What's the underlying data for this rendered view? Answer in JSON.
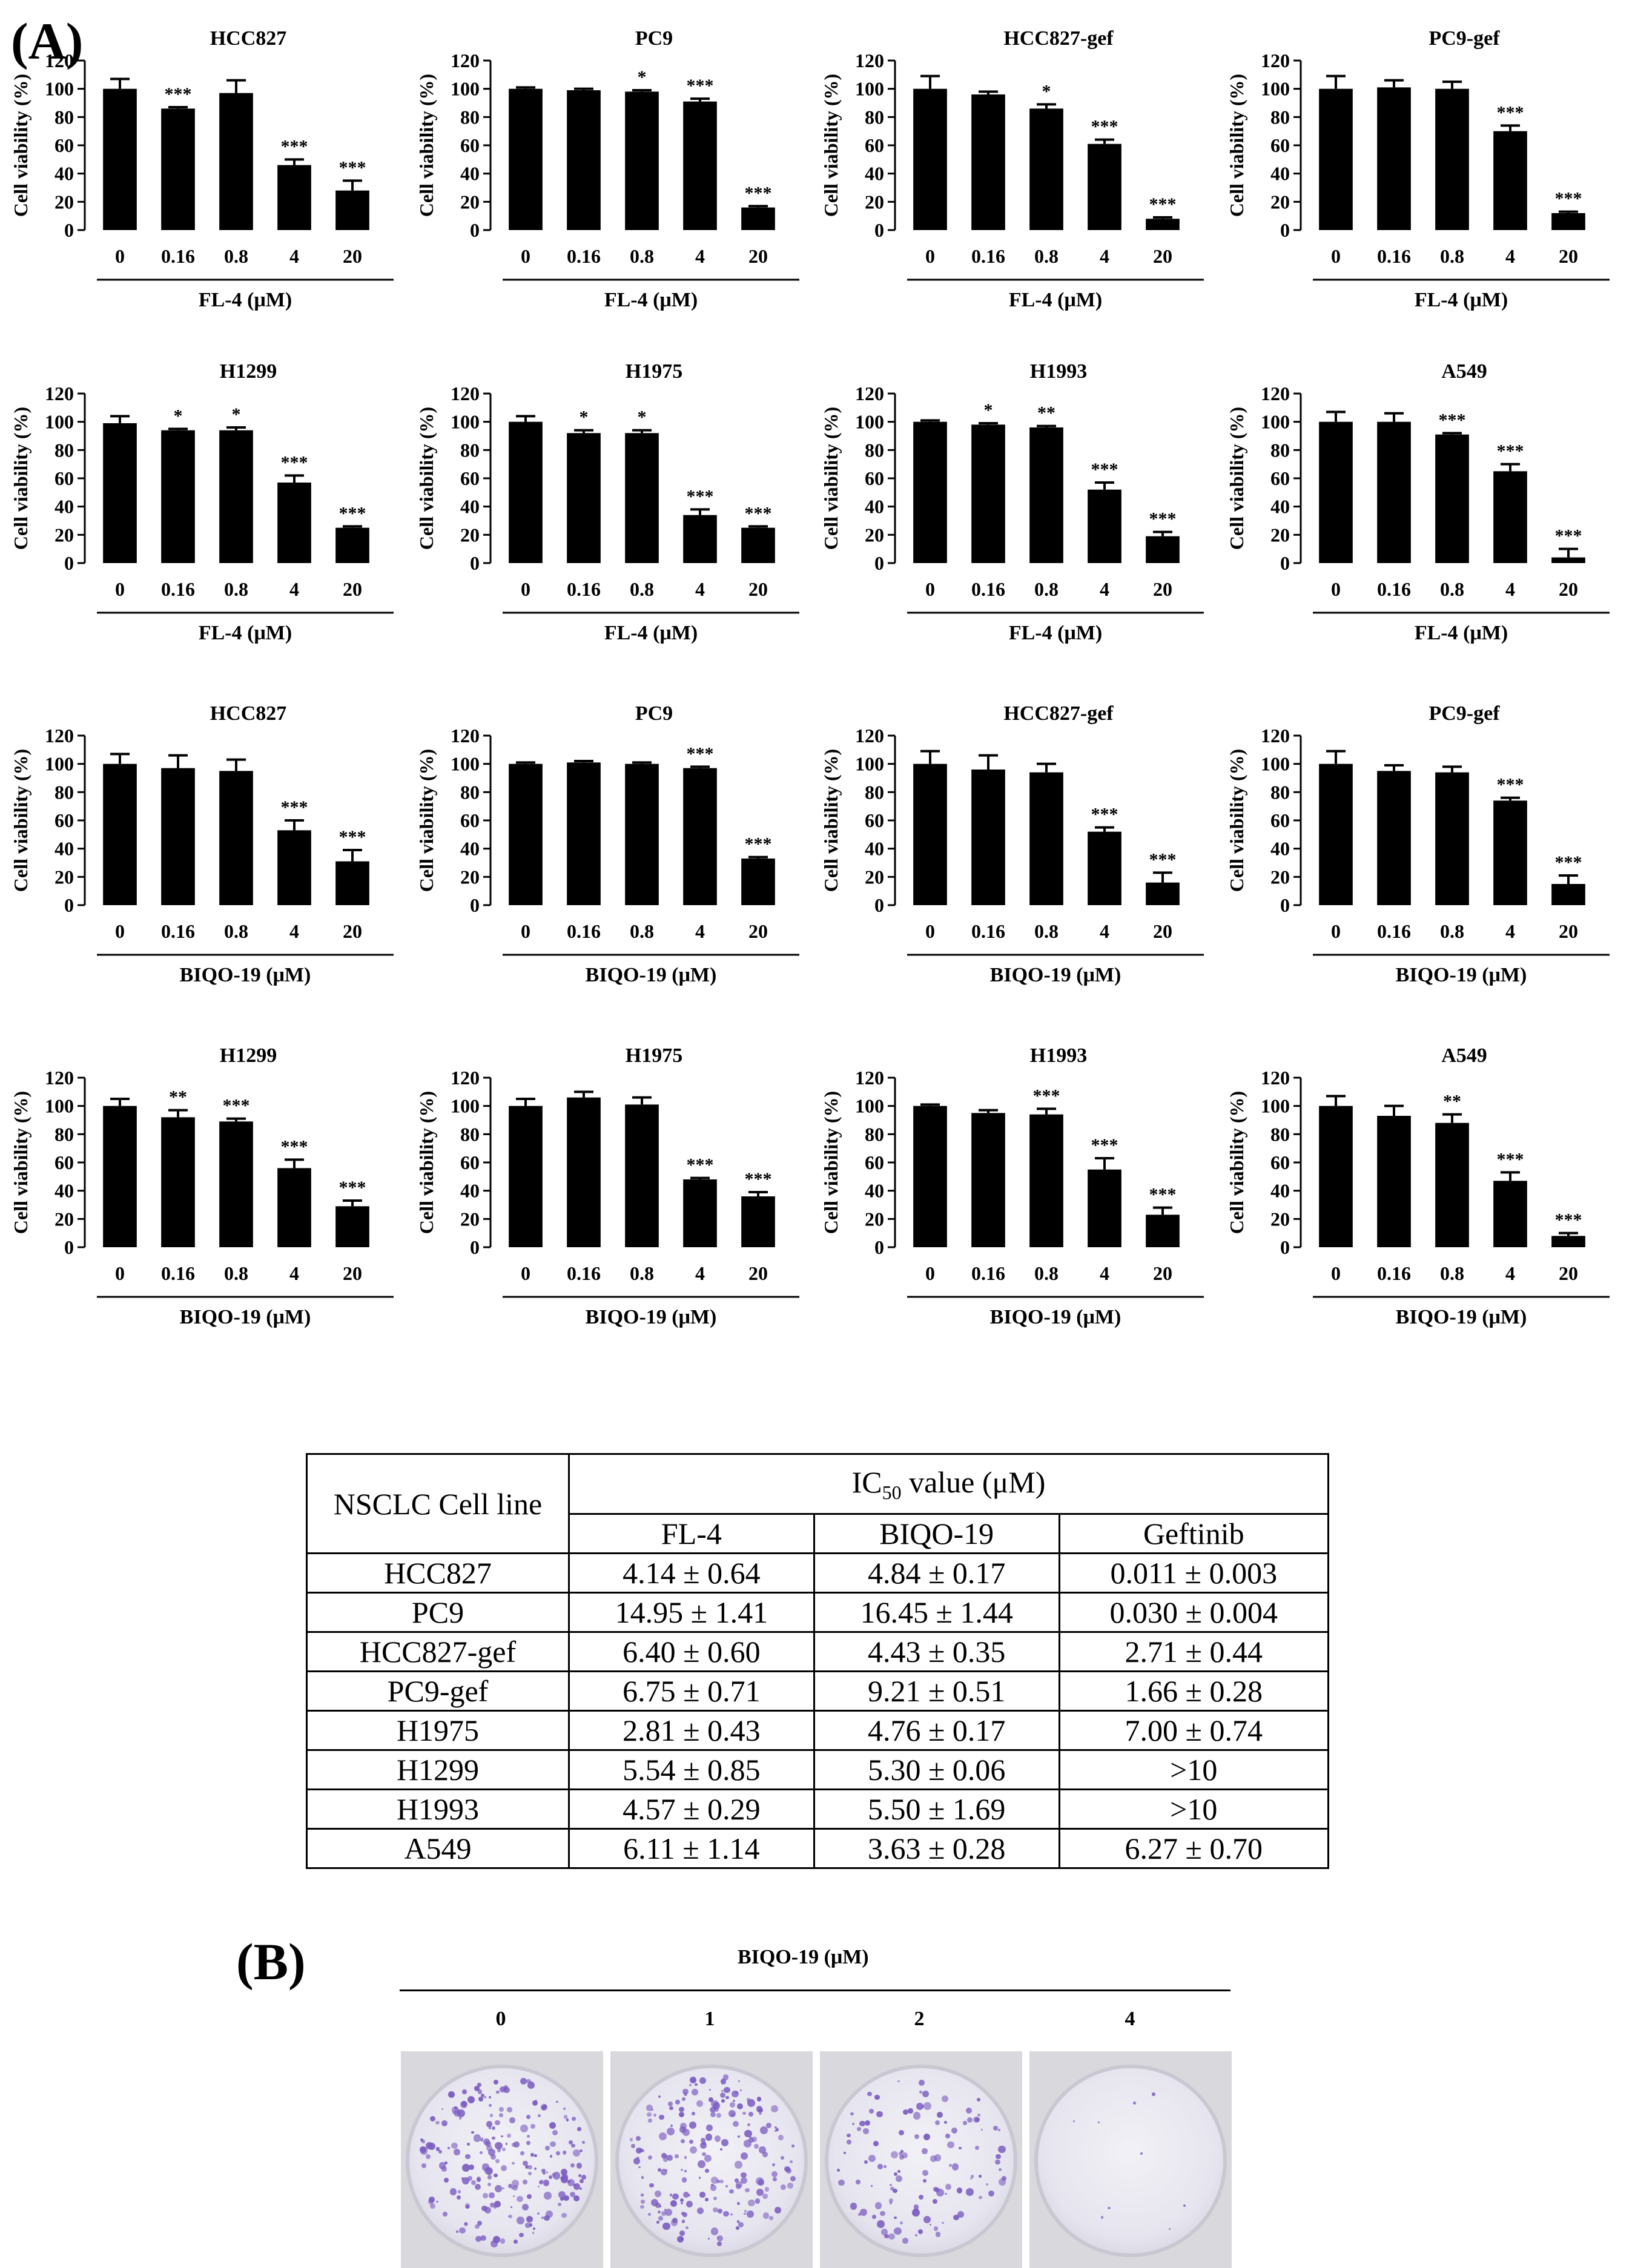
{
  "panel_labels": {
    "a": "(A)",
    "b": "(B)"
  },
  "y_axis_label": "Cell viability (%)",
  "x_tick_labels": [
    "0",
    "0.16",
    "0.8",
    "4",
    "20"
  ],
  "chart_data": [
    {
      "type": "bar",
      "title": "HCC827",
      "xlabel": "FL-4 (μM)",
      "ylabel": "Cell viability (%)",
      "ylim": [
        0,
        120
      ],
      "categories": [
        "0",
        "0.16",
        "0.8",
        "4",
        "20"
      ],
      "values": [
        100,
        86,
        97,
        46,
        28
      ],
      "errors": [
        7,
        1,
        9,
        4,
        7
      ],
      "significance": [
        "",
        "***",
        "",
        "***",
        "***"
      ]
    },
    {
      "type": "bar",
      "title": "PC9",
      "xlabel": "FL-4 (μM)",
      "ylabel": "Cell viability (%)",
      "ylim": [
        0,
        120
      ],
      "categories": [
        "0",
        "0.16",
        "0.8",
        "4",
        "20"
      ],
      "values": [
        100,
        99,
        98,
        91,
        16
      ],
      "errors": [
        1,
        1,
        1,
        2,
        1
      ],
      "significance": [
        "",
        "",
        "*",
        "***",
        "***"
      ]
    },
    {
      "type": "bar",
      "title": "HCC827-gef",
      "xlabel": "FL-4 (μM)",
      "ylabel": "Cell viability (%)",
      "ylim": [
        0,
        120
      ],
      "categories": [
        "0",
        "0.16",
        "0.8",
        "4",
        "20"
      ],
      "values": [
        100,
        96,
        86,
        61,
        8
      ],
      "errors": [
        9,
        2,
        3,
        3,
        1
      ],
      "significance": [
        "",
        "",
        "*",
        "***",
        "***"
      ]
    },
    {
      "type": "bar",
      "title": "PC9-gef",
      "xlabel": "FL-4 (μM)",
      "ylabel": "Cell viability (%)",
      "ylim": [
        0,
        120
      ],
      "categories": [
        "0",
        "0.16",
        "0.8",
        "4",
        "20"
      ],
      "values": [
        100,
        101,
        100,
        70,
        12
      ],
      "errors": [
        9,
        5,
        5,
        4,
        1
      ],
      "significance": [
        "",
        "",
        "",
        "***",
        "***"
      ]
    },
    {
      "type": "bar",
      "title": "H1299",
      "xlabel": "FL-4 (μM)",
      "ylabel": "Cell viability (%)",
      "ylim": [
        0,
        120
      ],
      "categories": [
        "0",
        "0.16",
        "0.8",
        "4",
        "20"
      ],
      "values": [
        99,
        94,
        94,
        57,
        25
      ],
      "errors": [
        5,
        1,
        2,
        5,
        1
      ],
      "significance": [
        "",
        "*",
        "*",
        "***",
        "***"
      ]
    },
    {
      "type": "bar",
      "title": "H1975",
      "xlabel": "FL-4 (μM)",
      "ylabel": "Cell viability (%)",
      "ylim": [
        0,
        120
      ],
      "categories": [
        "0",
        "0.16",
        "0.8",
        "4",
        "20"
      ],
      "values": [
        100,
        92,
        92,
        34,
        25
      ],
      "errors": [
        4,
        2,
        2,
        4,
        1
      ],
      "significance": [
        "",
        "*",
        "*",
        "***",
        "***"
      ]
    },
    {
      "type": "bar",
      "title": "H1993",
      "xlabel": "FL-4 (μM)",
      "ylabel": "Cell viability (%)",
      "ylim": [
        0,
        120
      ],
      "categories": [
        "0",
        "0.16",
        "0.8",
        "4",
        "20"
      ],
      "values": [
        100,
        98,
        96,
        52,
        19
      ],
      "errors": [
        1,
        1,
        1,
        5,
        3
      ],
      "significance": [
        "",
        "*",
        "**",
        "***",
        "***"
      ]
    },
    {
      "type": "bar",
      "title": "A549",
      "xlabel": "FL-4 (μM)",
      "ylabel": "Cell viability (%)",
      "ylim": [
        0,
        120
      ],
      "categories": [
        "0",
        "0.16",
        "0.8",
        "4",
        "20"
      ],
      "values": [
        100,
        100,
        91,
        65,
        4
      ],
      "errors": [
        7,
        6,
        1,
        5,
        6
      ],
      "significance": [
        "",
        "",
        "***",
        "***",
        "***"
      ]
    },
    {
      "type": "bar",
      "title": "HCC827",
      "xlabel": "BIQO-19 (μM)",
      "ylabel": "Cell viability (%)",
      "ylim": [
        0,
        120
      ],
      "categories": [
        "0",
        "0.16",
        "0.8",
        "4",
        "20"
      ],
      "values": [
        100,
        97,
        95,
        53,
        31
      ],
      "errors": [
        7,
        9,
        8,
        7,
        8
      ],
      "significance": [
        "",
        "",
        "",
        "***",
        "***"
      ]
    },
    {
      "type": "bar",
      "title": "PC9",
      "xlabel": "BIQO-19 (μM)",
      "ylabel": "Cell viability (%)",
      "ylim": [
        0,
        120
      ],
      "categories": [
        "0",
        "0.16",
        "0.8",
        "4",
        "20"
      ],
      "values": [
        100,
        101,
        100,
        97,
        33
      ],
      "errors": [
        1,
        1,
        1,
        1,
        1
      ],
      "significance": [
        "",
        "",
        "",
        "***",
        "***"
      ]
    },
    {
      "type": "bar",
      "title": "HCC827-gef",
      "xlabel": "BIQO-19 (μM)",
      "ylabel": "Cell viability (%)",
      "ylim": [
        0,
        120
      ],
      "categories": [
        "0",
        "0.16",
        "0.8",
        "4",
        "20"
      ],
      "values": [
        100,
        96,
        94,
        52,
        16
      ],
      "errors": [
        9,
        10,
        6,
        3,
        7
      ],
      "significance": [
        "",
        "",
        "",
        "***",
        "***"
      ]
    },
    {
      "type": "bar",
      "title": "PC9-gef",
      "xlabel": "BIQO-19 (μM)",
      "ylabel": "Cell viability (%)",
      "ylim": [
        0,
        120
      ],
      "categories": [
        "0",
        "0.16",
        "0.8",
        "4",
        "20"
      ],
      "values": [
        100,
        95,
        94,
        74,
        15
      ],
      "errors": [
        9,
        4,
        4,
        2,
        6
      ],
      "significance": [
        "",
        "",
        "",
        "***",
        "***"
      ]
    },
    {
      "type": "bar",
      "title": "H1299",
      "xlabel": "BIQO-19 (μM)",
      "ylabel": "Cell viability (%)",
      "ylim": [
        0,
        120
      ],
      "categories": [
        "0",
        "0.16",
        "0.8",
        "4",
        "20"
      ],
      "values": [
        100,
        92,
        89,
        56,
        29
      ],
      "errors": [
        5,
        5,
        2,
        6,
        4
      ],
      "significance": [
        "",
        "**",
        "***",
        "***",
        "***"
      ]
    },
    {
      "type": "bar",
      "title": "H1975",
      "xlabel": "BIQO-19 (μM)",
      "ylabel": "Cell viability (%)",
      "ylim": [
        0,
        120
      ],
      "categories": [
        "0",
        "0.16",
        "0.8",
        "4",
        "20"
      ],
      "values": [
        100,
        106,
        101,
        48,
        36
      ],
      "errors": [
        5,
        4,
        5,
        1,
        3
      ],
      "significance": [
        "",
        "",
        "",
        "***",
        "***"
      ]
    },
    {
      "type": "bar",
      "title": "H1993",
      "xlabel": "BIQO-19 (μM)",
      "ylabel": "Cell viability (%)",
      "ylim": [
        0,
        120
      ],
      "categories": [
        "0",
        "0.16",
        "0.8",
        "4",
        "20"
      ],
      "values": [
        100,
        95,
        94,
        55,
        23
      ],
      "errors": [
        1,
        2,
        4,
        8,
        5
      ],
      "significance": [
        "",
        "",
        "***",
        "***",
        "***"
      ]
    },
    {
      "type": "bar",
      "title": "A549",
      "xlabel": "BIQO-19 (μM)",
      "ylabel": "Cell viability (%)",
      "ylim": [
        0,
        120
      ],
      "categories": [
        "0",
        "0.16",
        "0.8",
        "4",
        "20"
      ],
      "values": [
        100,
        93,
        88,
        47,
        8
      ],
      "errors": [
        7,
        7,
        6,
        6,
        2
      ],
      "significance": [
        "",
        "",
        "**",
        "***",
        "***"
      ]
    }
  ],
  "y_ticks": [
    "0",
    "20",
    "40",
    "60",
    "80",
    "100",
    "120"
  ],
  "table": {
    "row_header": "NSCLC Cell line",
    "group_header_main": "IC",
    "group_header_sub": "50",
    "group_header_rest": " value (μM)",
    "columns": [
      "FL-4",
      "BIQO-19",
      "Geftinib"
    ],
    "rows": [
      [
        "HCC827",
        "4.14 ± 0.64",
        "4.84 ± 0.17",
        "0.011 ± 0.003"
      ],
      [
        "PC9",
        "14.95 ± 1.41",
        "16.45 ± 1.44",
        "0.030 ± 0.004"
      ],
      [
        "HCC827-gef",
        "6.40 ± 0.60",
        "4.43 ± 0.35",
        "2.71 ± 0.44"
      ],
      [
        "PC9-gef",
        "6.75 ± 0.71",
        "9.21 ± 0.51",
        "1.66 ± 0.28"
      ],
      [
        "H1975",
        "2.81 ± 0.43",
        "4.76 ± 0.17",
        "7.00 ± 0.74"
      ],
      [
        "H1299",
        "5.54 ± 0.85",
        "5.30 ± 0.06",
        ">10"
      ],
      [
        "H1993",
        "4.57 ± 0.29",
        "5.50 ± 1.69",
        ">10"
      ],
      [
        "A549",
        "6.11 ± 1.14",
        "3.63 ± 0.28",
        "6.27 ± 0.70"
      ]
    ]
  },
  "panel_b": {
    "title": "BIQO-19 (μM)",
    "doses": [
      "0",
      "1",
      "2",
      "4"
    ],
    "colony_color": "#7a5bc0",
    "colony_density": [
      1.0,
      0.95,
      0.55,
      0.04
    ]
  },
  "colors": {
    "bar": "#000000",
    "background": "#ffffff"
  }
}
